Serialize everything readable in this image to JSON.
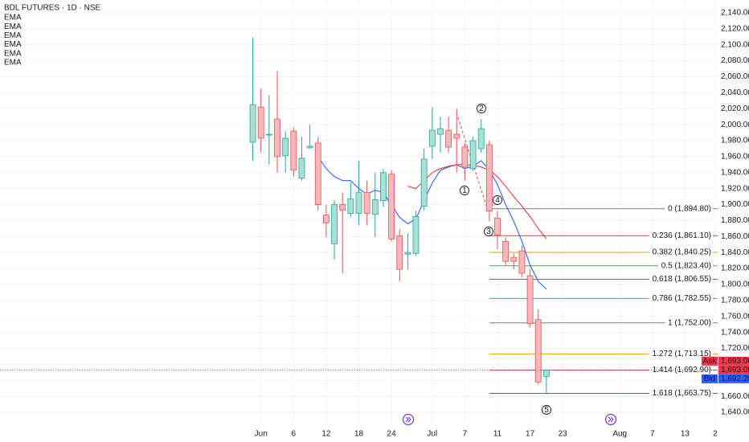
{
  "header": {
    "title": "BDL FUTURES · 1D · NSE",
    "indicators": [
      "EMA",
      "EMA",
      "EMA",
      "EMA",
      "EMA",
      "EMA"
    ]
  },
  "chart_data": {
    "type": "candlestick",
    "open": [
      1978,
      2022,
      1987,
      2007,
      1961,
      1992,
      1933,
      1971,
      1977,
      1887,
      1851,
      1900,
      1889,
      1889,
      1915,
      1888,
      1905,
      1938,
      1861,
      1838,
      1839,
      1898,
      1973,
      1988,
      1993,
      1988,
      1972,
      1945,
      1970,
      1975,
      1883,
      1854,
      1834,
      1842,
      1811,
      1756,
      1685
    ],
    "high": [
      2109,
      2045,
      2037,
      2067,
      1992,
      1997,
      1985,
      2000,
      1985,
      1900,
      1905,
      1915,
      1928,
      1955,
      1930,
      1940,
      1945,
      1943,
      1869,
      1864,
      1892,
      1970,
      2022,
      2010,
      2010,
      2020,
      1977,
      1985,
      2007,
      1980,
      1892,
      1859,
      1839,
      1849,
      1819,
      1769,
      1693
    ],
    "low": [
      1955,
      1965,
      1950,
      1940,
      1940,
      1935,
      1930,
      1970,
      1893,
      1859,
      1831,
      1814,
      1884,
      1874,
      1874,
      1859,
      1897,
      1854,
      1804,
      1819,
      1836,
      1892,
      1957,
      1965,
      1965,
      1940,
      1930,
      1942,
      1965,
      1879,
      1844,
      1824,
      1819,
      1809,
      1746,
      1675,
      1663.75
    ],
    "close": [
      2025,
      1983,
      1988,
      1960,
      1983,
      1943,
      1958,
      1973,
      1900,
      1877,
      1900,
      1893,
      1907,
      1915,
      1889,
      1906,
      1940,
      1857,
      1819,
      1840,
      1885,
      1957,
      1993,
      1995,
      1972,
      1983,
      1947,
      1980,
      1995,
      1892,
      1862,
      1829,
      1829,
      1814,
      1751,
      1678,
      1692.9
    ],
    "up_color": "#26a69a",
    "up_fill": "#a8e0d5",
    "down_color": "#ef5350",
    "down_fill": "#f9b8bc",
    "series": [
      {
        "color": "#2962ff",
        "values": [
          null,
          null,
          null,
          null,
          null,
          null,
          null,
          null,
          1960,
          1945,
          1935,
          1930,
          1930,
          1920,
          1913,
          1918,
          1915,
          1900,
          1884,
          1876,
          1882,
          1905,
          1927,
          1943,
          1947,
          1950,
          1945,
          1948,
          1955,
          1943,
          1925,
          1900,
          1879,
          1854,
          1824,
          1804,
          1794
        ]
      },
      {
        "color": "#f23645",
        "values": [
          null,
          null,
          null,
          null,
          null,
          null,
          null,
          null,
          null,
          null,
          null,
          null,
          null,
          null,
          null,
          null,
          null,
          null,
          null,
          1923,
          1920,
          1930,
          1940,
          1945,
          1948,
          1950,
          1950,
          1949,
          1947,
          1943,
          1935,
          1923,
          1910,
          1898,
          1885,
          1870,
          1857
        ]
      }
    ],
    "xlim": [
      -31,
      57
    ],
    "xticks": [
      {
        "value": 1,
        "label": "Jun"
      },
      {
        "value": 5,
        "label": "6"
      },
      {
        "value": 9,
        "label": "12"
      },
      {
        "value": 13,
        "label": "18"
      },
      {
        "value": 17,
        "label": "24"
      },
      {
        "value": 22,
        "label": "Jul"
      },
      {
        "value": 26,
        "label": "7"
      },
      {
        "value": 30,
        "label": "11"
      },
      {
        "value": 34,
        "label": "17"
      },
      {
        "value": 38,
        "label": "23"
      },
      {
        "value": 45,
        "label": "Aug"
      },
      {
        "value": 49,
        "label": "7"
      },
      {
        "value": 53,
        "label": "13"
      },
      {
        "value": 56.7,
        "label": "2"
      }
    ],
    "ylim": [
      1623,
      2156
    ],
    "yticks": [
      {
        "value": 1640,
        "label": "1,640.00"
      },
      {
        "value": 1660,
        "label": "1,660.00"
      },
      {
        "value": 1680,
        "label": "1,680.00"
      },
      {
        "value": 1700,
        "label": "1,700.00"
      },
      {
        "value": 1720,
        "label": "1,720.00"
      },
      {
        "value": 1740,
        "label": "1,740.00"
      },
      {
        "value": 1760,
        "label": "1,760.00"
      },
      {
        "value": 1780,
        "label": "1,780.00"
      },
      {
        "value": 1800,
        "label": "1,800.00"
      },
      {
        "value": 1820,
        "label": "1,820.00"
      },
      {
        "value": 1840,
        "label": "1,840.00"
      },
      {
        "value": 1860,
        "label": "1,860.00"
      },
      {
        "value": 1880,
        "label": "1,880.00"
      },
      {
        "value": 1900,
        "label": "1,900.00"
      },
      {
        "value": 1920,
        "label": "1,920.00"
      },
      {
        "value": 1940,
        "label": "1,940.00"
      },
      {
        "value": 1960,
        "label": "1,960.00"
      },
      {
        "value": 1980,
        "label": "1,980.00"
      },
      {
        "value": 2000,
        "label": "2,000.00"
      },
      {
        "value": 2020,
        "label": "2,020.00"
      },
      {
        "value": 2040,
        "label": "2,040.00"
      },
      {
        "value": 2060,
        "label": "2,060.00"
      },
      {
        "value": 2080,
        "label": "2,080.00"
      },
      {
        "value": 2100,
        "label": "2,100.00"
      },
      {
        "value": 2120,
        "label": "2,120.00"
      },
      {
        "value": 2140,
        "label": "2,140.00"
      }
    ],
    "grid": true,
    "fib": [
      {
        "value": 1894.8,
        "label": "0 (1,894.80)",
        "color": "#787b86"
      },
      {
        "value": 1861.1,
        "label": "0.236 (1,861.10)",
        "color": "#f23645"
      },
      {
        "value": 1840.25,
        "label": "0.382 (1,840.25)",
        "color": "#ff9800"
      },
      {
        "value": 1823.4,
        "label": "0.5 (1,823.40)",
        "color": "#4caf50"
      },
      {
        "value": 1806.55,
        "label": "0.618 (1,806.55)",
        "color": "#089981"
      },
      {
        "value": 1782.55,
        "label": "0.786 (1,782.55)",
        "color": "#00bcd4"
      },
      {
        "value": 1752,
        "label": "1 (1,752.00)",
        "color": "#787b86"
      },
      {
        "value": 1713.15,
        "label": "1.272 (1,713.15)",
        "color": "#ff9800"
      },
      {
        "value": 1692.9,
        "label": "1.414 (1,692.90)",
        "color": "#f23645"
      },
      {
        "value": 1663.75,
        "label": "1.618 (1,663.75)",
        "color": "#2962ff"
      }
    ],
    "price_tags": [
      {
        "name": "Ask",
        "value": 1693,
        "label": "1,693.00",
        "color": "#f23645"
      },
      {
        "value": 1693,
        "label": "1,693.00",
        "color": "#f23645"
      },
      {
        "name": "Bid",
        "value": 1692.2,
        "label": "1,692.20",
        "color": "#2962ff"
      }
    ],
    "annotations": [
      "1",
      "2",
      "3",
      "4",
      "5"
    ]
  }
}
